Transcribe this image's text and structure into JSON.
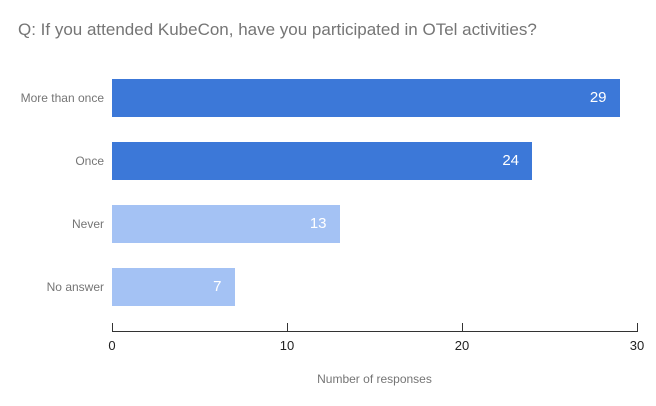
{
  "chart": {
    "title": "Q: If you attended KubeCon, have you participated in OTel activities?"
  },
  "chart_data": {
    "type": "bar",
    "orientation": "horizontal",
    "title": "Q: If you attended KubeCon, have you participated in OTel activities?",
    "categories": [
      "More than once",
      "Once",
      "Never",
      "No answer"
    ],
    "values": [
      29,
      24,
      13,
      7
    ],
    "bar_colors": [
      "#3c78d8",
      "#3c78d8",
      "#a4c2f4",
      "#a4c2f4"
    ],
    "value_label_color": "#ffffff",
    "value_label_position": "inside-end",
    "xlabel": "Number of responses",
    "ylabel": "",
    "xlim": [
      0,
      30
    ],
    "xticks": [
      0,
      10,
      20,
      30
    ],
    "grid": false,
    "legend": "none",
    "colors": {
      "title_text": "#757575",
      "category_text": "#757575",
      "axis_line": "#333333",
      "tick_text": "#222222",
      "axis_title_text": "#757575",
      "background": "#ffffff",
      "series_primary": "#3c78d8",
      "series_secondary": "#a4c2f4"
    }
  }
}
